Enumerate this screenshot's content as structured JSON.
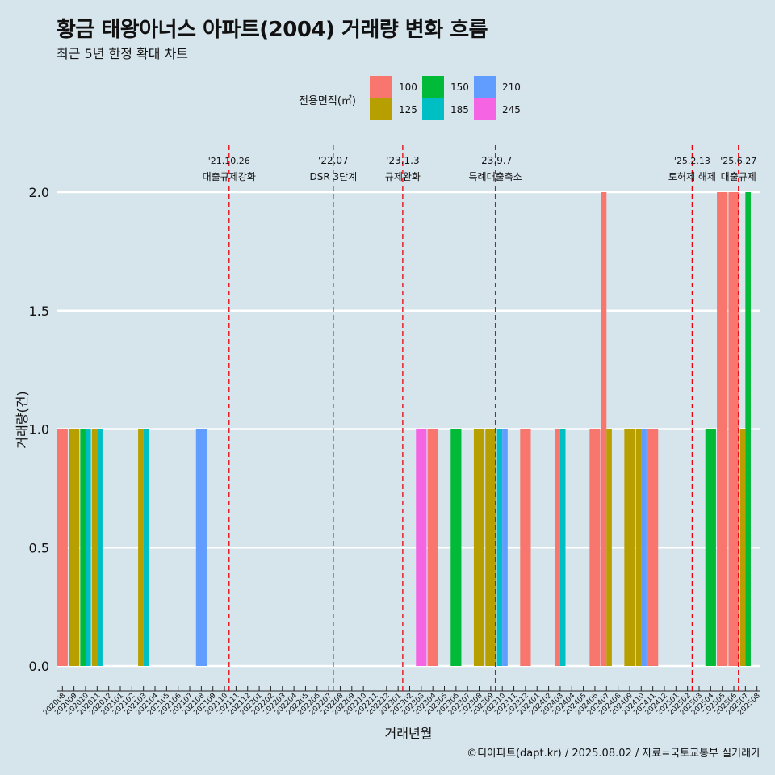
{
  "title": "황금 태왕아너스 아파트(2004) 거래량 변화 흐름",
  "subtitle": "최근 5년 한정 확대 차트",
  "caption": "©디아파트(dapt.kr) / 2025.08.02 / 자료=국토교통부 실거래가",
  "legend": {
    "title": "전용면적(㎡)",
    "items": [
      {
        "label": "100",
        "color": "#f8766d"
      },
      {
        "label": "125",
        "color": "#b79f00"
      },
      {
        "label": "150",
        "color": "#00ba38"
      },
      {
        "label": "185",
        "color": "#00bfc4"
      },
      {
        "label": "210",
        "color": "#619cff"
      },
      {
        "label": "245",
        "color": "#f564e3"
      }
    ]
  },
  "chart_data": {
    "type": "bar",
    "xlabel": "거래년월",
    "ylabel": "거래량(건)",
    "ylim": [
      0,
      2
    ],
    "yticks": [
      "0.0",
      "0.5",
      "1.0",
      "1.5",
      "2.0"
    ],
    "grid": true,
    "legend_position": "top",
    "categories": [
      "202008",
      "202009",
      "202010",
      "202011",
      "202012",
      "202101",
      "202102",
      "202103",
      "202104",
      "202105",
      "202106",
      "202107",
      "202108",
      "202109",
      "202110",
      "202111",
      "202112",
      "202201",
      "202202",
      "202203",
      "202204",
      "202205",
      "202206",
      "202207",
      "202208",
      "202209",
      "202210",
      "202211",
      "202212",
      "202301",
      "202302",
      "202303",
      "202304",
      "202305",
      "202306",
      "202307",
      "202308",
      "202309",
      "202310",
      "202311",
      "202312",
      "202401",
      "202402",
      "202403",
      "202404",
      "202405",
      "202406",
      "202407",
      "202408",
      "202409",
      "202410",
      "202411",
      "202412",
      "202501",
      "202502",
      "202503",
      "202504",
      "202505",
      "202506",
      "202507",
      "202508"
    ],
    "series": [
      {
        "name": "100",
        "values": [
          1,
          0,
          0,
          0,
          0,
          0,
          0,
          0,
          0,
          0,
          0,
          0,
          0,
          0,
          0,
          0,
          0,
          0,
          0,
          0,
          0,
          0,
          0,
          0,
          0,
          0,
          0,
          0,
          0,
          0,
          0,
          0,
          1,
          0,
          0,
          0,
          0,
          0,
          0,
          0,
          1,
          0,
          0,
          1,
          0,
          0,
          1,
          2,
          0,
          0,
          0,
          1,
          0,
          0,
          0,
          0,
          0,
          2,
          2,
          0,
          0
        ]
      },
      {
        "name": "125",
        "values": [
          0,
          1,
          0,
          1,
          0,
          0,
          0,
          1,
          0,
          0,
          0,
          0,
          0,
          0,
          0,
          0,
          0,
          0,
          0,
          0,
          0,
          0,
          0,
          0,
          0,
          0,
          0,
          0,
          0,
          0,
          0,
          0,
          0,
          0,
          0,
          0,
          1,
          1,
          0,
          0,
          0,
          0,
          0,
          0,
          0,
          0,
          0,
          1,
          0,
          1,
          1,
          0,
          0,
          0,
          0,
          0,
          0,
          0,
          0,
          1,
          0
        ]
      },
      {
        "name": "150",
        "values": [
          0,
          0,
          1,
          0,
          0,
          0,
          0,
          0,
          0,
          0,
          0,
          0,
          0,
          0,
          0,
          0,
          0,
          0,
          0,
          0,
          0,
          0,
          0,
          0,
          0,
          0,
          0,
          0,
          0,
          0,
          0,
          0,
          0,
          0,
          1,
          0,
          0,
          0,
          0,
          0,
          0,
          0,
          0,
          0,
          0,
          0,
          0,
          0,
          0,
          0,
          0,
          0,
          0,
          0,
          0,
          0,
          1,
          0,
          0,
          2,
          0
        ]
      },
      {
        "name": "185",
        "values": [
          0,
          0,
          1,
          1,
          0,
          0,
          0,
          1,
          0,
          0,
          0,
          0,
          0,
          0,
          0,
          0,
          0,
          0,
          0,
          0,
          0,
          0,
          0,
          0,
          0,
          0,
          0,
          0,
          0,
          0,
          0,
          0,
          0,
          0,
          0,
          0,
          0,
          0,
          1,
          0,
          0,
          0,
          0,
          1,
          0,
          0,
          0,
          0,
          0,
          0,
          0,
          0,
          0,
          0,
          0,
          0,
          0,
          0,
          0,
          0,
          0
        ]
      },
      {
        "name": "210",
        "values": [
          0,
          0,
          0,
          0,
          0,
          0,
          0,
          0,
          0,
          0,
          0,
          0,
          1,
          0,
          0,
          0,
          0,
          0,
          0,
          0,
          0,
          0,
          0,
          0,
          0,
          0,
          0,
          0,
          0,
          0,
          0,
          0,
          0,
          0,
          0,
          0,
          0,
          0,
          1,
          0,
          0,
          0,
          0,
          0,
          0,
          0,
          0,
          0,
          0,
          0,
          1,
          0,
          0,
          0,
          0,
          0,
          0,
          0,
          0,
          0,
          0
        ]
      },
      {
        "name": "245",
        "values": [
          0,
          0,
          0,
          0,
          0,
          0,
          0,
          0,
          0,
          0,
          0,
          0,
          0,
          0,
          0,
          0,
          0,
          0,
          0,
          0,
          0,
          0,
          0,
          0,
          0,
          0,
          0,
          0,
          0,
          0,
          0,
          1,
          0,
          0,
          0,
          0,
          0,
          0,
          0,
          0,
          0,
          0,
          0,
          0,
          0,
          0,
          0,
          0,
          0,
          0,
          0,
          0,
          0,
          0,
          0,
          0,
          0,
          0,
          0,
          0,
          0
        ]
      }
    ],
    "annotations": [
      {
        "x": 14.4,
        "date": "'21.10.26",
        "text": "대출규제강화"
      },
      {
        "x": 23.4,
        "date": "'22.07",
        "text": "DSR 3단계"
      },
      {
        "x": 29.4,
        "date": "'23.1.3",
        "text": "규제완화"
      },
      {
        "x": 37.4,
        "date": "'23.9.7",
        "text": "특례대출축소"
      },
      {
        "x": 54.4,
        "date": "'25.2.13",
        "text": "토허제 해제"
      },
      {
        "x": 58.4,
        "date": "'25.6.27",
        "text": "대출규제"
      }
    ]
  }
}
